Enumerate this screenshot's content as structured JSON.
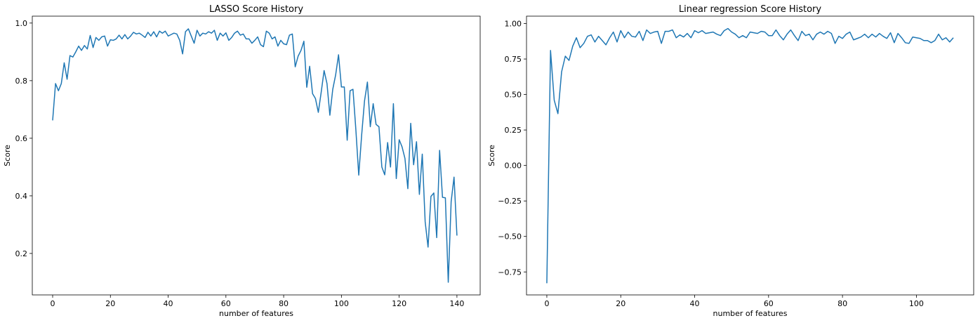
{
  "chart_data": [
    {
      "type": "line",
      "title": "LASSO Score History",
      "xlabel": "number of features",
      "ylabel": "Score",
      "xlim": [
        -7.05,
        148.05
      ],
      "ylim": [
        0.056,
        1.024
      ],
      "xticks": [
        0,
        20,
        40,
        60,
        80,
        100,
        120,
        140
      ],
      "xtick_labels": [
        "0",
        "20",
        "40",
        "60",
        "80",
        "100",
        "120",
        "140"
      ],
      "yticks": [
        0.2,
        0.4,
        0.6,
        0.8,
        1.0
      ],
      "ytick_labels": [
        "0.2",
        "0.4",
        "0.6",
        "0.8",
        "1.0"
      ],
      "grid": false,
      "color": "#1f77b4",
      "series": [
        {
          "x": [
            0,
            1,
            2,
            3,
            4,
            5,
            6,
            7,
            8,
            9,
            10,
            11,
            12,
            13,
            14,
            15,
            16,
            17,
            18,
            19,
            20,
            21,
            22,
            23,
            24,
            25,
            26,
            27,
            28,
            29,
            30,
            31,
            32,
            33,
            34,
            35,
            36,
            37,
            38,
            39,
            40,
            41,
            42,
            43,
            44,
            45,
            46,
            47,
            48,
            49,
            50,
            51,
            52,
            53,
            54,
            55,
            56,
            57,
            58,
            59,
            60,
            61,
            62,
            63,
            64,
            65,
            66,
            67,
            68,
            69,
            70,
            71,
            72,
            73,
            74,
            75,
            76,
            77,
            78,
            79,
            80,
            81,
            82,
            83,
            84,
            85,
            86,
            87,
            88,
            89,
            90,
            91,
            92,
            93,
            94,
            95,
            96,
            97,
            98,
            99,
            100,
            101,
            102,
            103,
            104,
            105,
            106,
            107,
            108,
            109,
            110,
            111,
            112,
            113,
            114,
            115,
            116,
            117,
            118,
            119,
            120,
            121,
            122,
            123,
            124,
            125,
            126,
            127,
            128,
            129,
            130,
            131,
            132,
            133,
            134,
            135,
            136,
            137,
            138,
            139,
            140
          ],
          "values": [
            0.662,
            0.79,
            0.765,
            0.79,
            0.862,
            0.805,
            0.887,
            0.882,
            0.9,
            0.92,
            0.905,
            0.922,
            0.91,
            0.957,
            0.915,
            0.95,
            0.94,
            0.952,
            0.955,
            0.92,
            0.942,
            0.94,
            0.945,
            0.958,
            0.945,
            0.96,
            0.945,
            0.955,
            0.968,
            0.962,
            0.965,
            0.958,
            0.95,
            0.968,
            0.955,
            0.97,
            0.952,
            0.972,
            0.965,
            0.972,
            0.955,
            0.96,
            0.965,
            0.962,
            0.94,
            0.893,
            0.97,
            0.98,
            0.955,
            0.93,
            0.975,
            0.955,
            0.965,
            0.962,
            0.97,
            0.965,
            0.975,
            0.94,
            0.965,
            0.955,
            0.966,
            0.94,
            0.95,
            0.965,
            0.972,
            0.958,
            0.962,
            0.945,
            0.945,
            0.93,
            0.94,
            0.952,
            0.925,
            0.918,
            0.972,
            0.965,
            0.945,
            0.952,
            0.92,
            0.94,
            0.928,
            0.925,
            0.958,
            0.962,
            0.848,
            0.885,
            0.905,
            0.937,
            0.777,
            0.85,
            0.755,
            0.738,
            0.69,
            0.76,
            0.835,
            0.79,
            0.68,
            0.77,
            0.82,
            0.89,
            0.778,
            0.778,
            0.593,
            0.765,
            0.77,
            0.63,
            0.472,
            0.61,
            0.73,
            0.795,
            0.64,
            0.72,
            0.648,
            0.64,
            0.5,
            0.473,
            0.585,
            0.5,
            0.72,
            0.46,
            0.595,
            0.57,
            0.53,
            0.425,
            0.652,
            0.508,
            0.588,
            0.405,
            0.545,
            0.31,
            0.222,
            0.398,
            0.41,
            0.255,
            0.558,
            0.395,
            0.393,
            0.1,
            0.38,
            0.465,
            0.262
          ]
        }
      ]
    },
    {
      "type": "line",
      "title": "Linear regression Score History",
      "xlabel": "number of features",
      "ylabel": "Score",
      "xlim": [
        -5.5,
        115.5
      ],
      "ylim": [
        -0.912,
        1.052
      ],
      "xticks": [
        0,
        20,
        40,
        60,
        80,
        100
      ],
      "xtick_labels": [
        "0",
        "20",
        "40",
        "60",
        "80",
        "100"
      ],
      "yticks": [
        -0.75,
        -0.5,
        -0.25,
        0.0,
        0.25,
        0.5,
        0.75,
        1.0
      ],
      "ytick_labels": [
        "−0.75",
        "−0.50",
        "−0.25",
        "0.00",
        "0.25",
        "0.50",
        "0.75",
        "1.00"
      ],
      "grid": false,
      "color": "#1f77b4",
      "series": [
        {
          "x": [
            0,
            1,
            2,
            3,
            4,
            5,
            6,
            7,
            8,
            9,
            10,
            11,
            12,
            13,
            14,
            15,
            16,
            17,
            18,
            19,
            20,
            21,
            22,
            23,
            24,
            25,
            26,
            27,
            28,
            29,
            30,
            31,
            32,
            33,
            34,
            35,
            36,
            37,
            38,
            39,
            40,
            41,
            42,
            43,
            44,
            45,
            46,
            47,
            48,
            49,
            50,
            51,
            52,
            53,
            54,
            55,
            56,
            57,
            58,
            59,
            60,
            61,
            62,
            63,
            64,
            65,
            66,
            67,
            68,
            69,
            70,
            71,
            72,
            73,
            74,
            75,
            76,
            77,
            78,
            79,
            80,
            81,
            82,
            83,
            84,
            85,
            86,
            87,
            88,
            89,
            90,
            91,
            92,
            93,
            94,
            95,
            96,
            97,
            98,
            99,
            100,
            101,
            102,
            103,
            104,
            105,
            106,
            107,
            108,
            109,
            110
          ],
          "values": [
            -0.83,
            0.81,
            0.46,
            0.365,
            0.66,
            0.77,
            0.74,
            0.84,
            0.9,
            0.83,
            0.86,
            0.91,
            0.92,
            0.87,
            0.91,
            0.88,
            0.85,
            0.9,
            0.94,
            0.87,
            0.95,
            0.9,
            0.94,
            0.91,
            0.905,
            0.945,
            0.88,
            0.955,
            0.93,
            0.94,
            0.945,
            0.86,
            0.945,
            0.945,
            0.955,
            0.9,
            0.92,
            0.905,
            0.93,
            0.9,
            0.95,
            0.935,
            0.95,
            0.93,
            0.935,
            0.94,
            0.925,
            0.915,
            0.95,
            0.965,
            0.94,
            0.925,
            0.9,
            0.915,
            0.9,
            0.94,
            0.935,
            0.93,
            0.945,
            0.94,
            0.915,
            0.915,
            0.955,
            0.915,
            0.885,
            0.925,
            0.955,
            0.915,
            0.88,
            0.945,
            0.915,
            0.925,
            0.885,
            0.925,
            0.94,
            0.925,
            0.945,
            0.93,
            0.86,
            0.91,
            0.895,
            0.925,
            0.94,
            0.885,
            0.895,
            0.905,
            0.925,
            0.9,
            0.925,
            0.905,
            0.93,
            0.91,
            0.895,
            0.935,
            0.865,
            0.93,
            0.9,
            0.865,
            0.86,
            0.905,
            0.9,
            0.895,
            0.88,
            0.88,
            0.865,
            0.88,
            0.925,
            0.885,
            0.9,
            0.87,
            0.9
          ]
        }
      ]
    }
  ]
}
